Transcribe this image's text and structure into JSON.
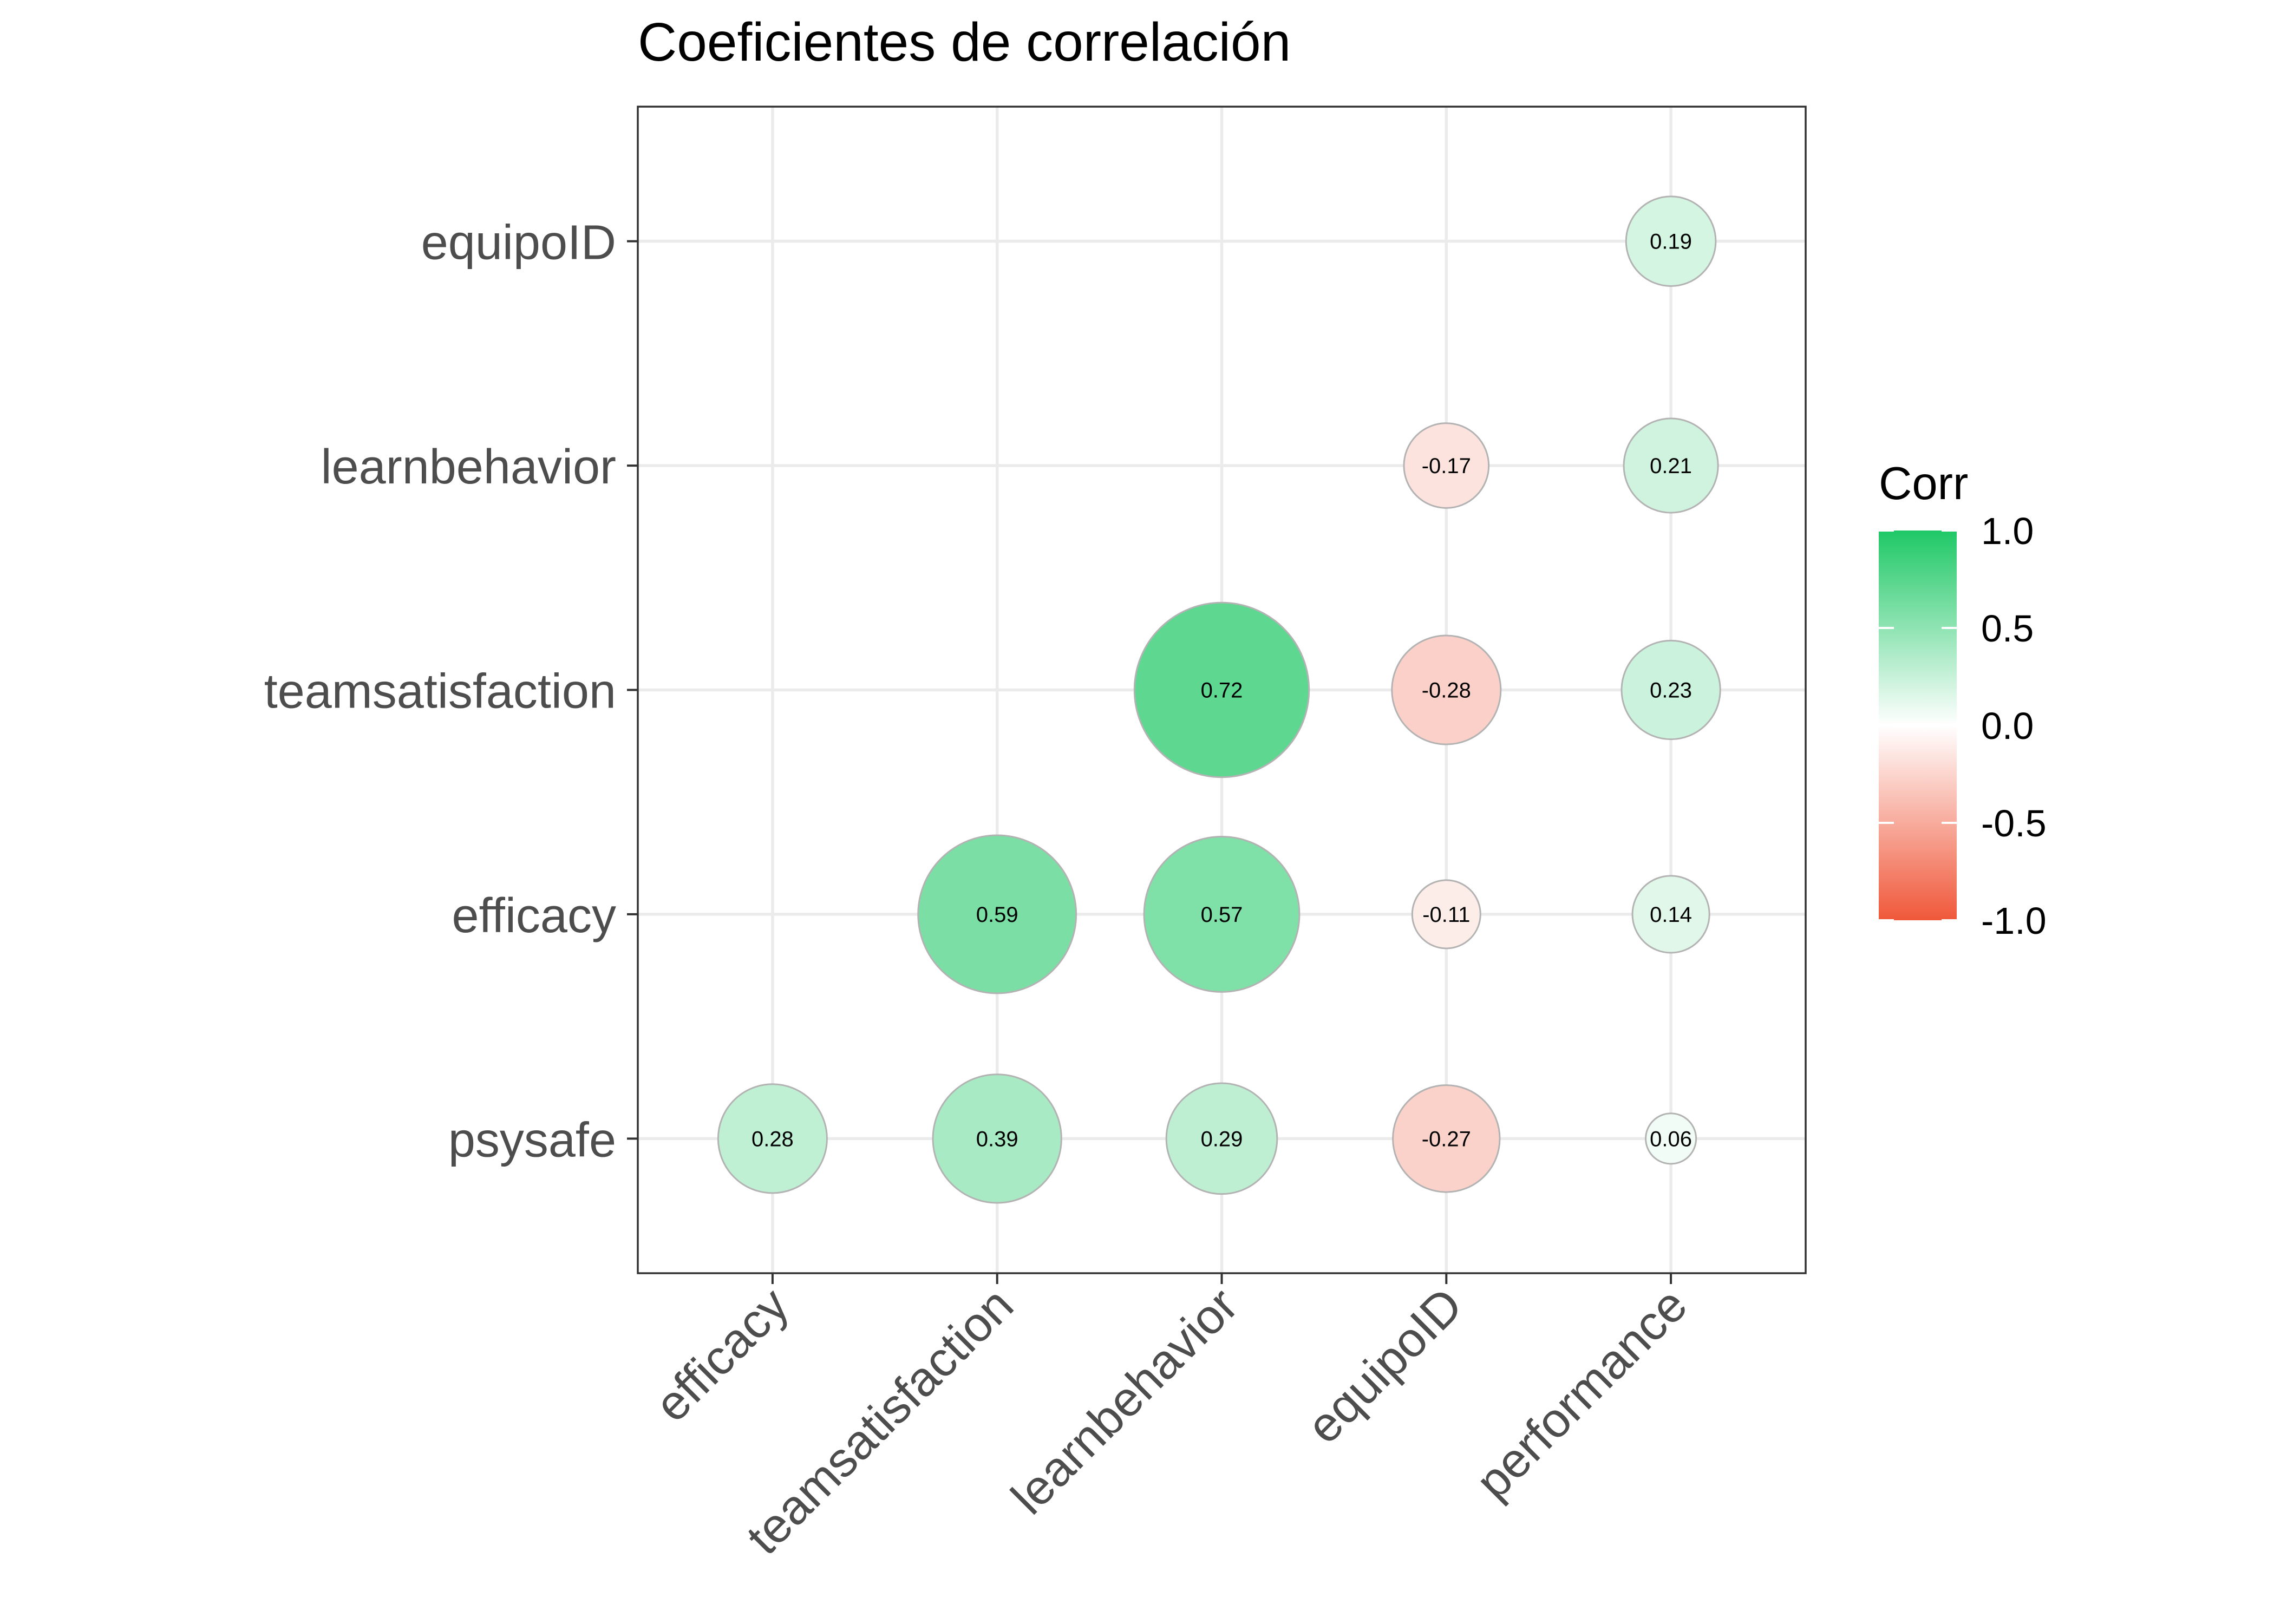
{
  "chart_data": {
    "type": "scatter",
    "title": "Coeficientes de correlación",
    "x_categories": [
      "efficacy",
      "teamsatisfaction",
      "learnbehavior",
      "equipoID",
      "performance"
    ],
    "y_categories": [
      "psysafe",
      "efficacy",
      "teamsatisfaction",
      "learnbehavior",
      "equipoID"
    ],
    "cells": [
      {
        "x": "efficacy",
        "y": "psysafe",
        "value": 0.28,
        "label": "0.28"
      },
      {
        "x": "teamsatisfaction",
        "y": "psysafe",
        "value": 0.39,
        "label": "0.39"
      },
      {
        "x": "learnbehavior",
        "y": "psysafe",
        "value": 0.29,
        "label": "0.29"
      },
      {
        "x": "equipoID",
        "y": "psysafe",
        "value": -0.27,
        "label": "-0.27"
      },
      {
        "x": "performance",
        "y": "psysafe",
        "value": 0.06,
        "label": "0.06"
      },
      {
        "x": "teamsatisfaction",
        "y": "efficacy",
        "value": 0.59,
        "label": "0.59"
      },
      {
        "x": "learnbehavior",
        "y": "efficacy",
        "value": 0.57,
        "label": "0.57"
      },
      {
        "x": "equipoID",
        "y": "efficacy",
        "value": -0.11,
        "label": "-0.11"
      },
      {
        "x": "performance",
        "y": "efficacy",
        "value": 0.14,
        "label": "0.14"
      },
      {
        "x": "learnbehavior",
        "y": "teamsatisfaction",
        "value": 0.72,
        "label": "0.72"
      },
      {
        "x": "equipoID",
        "y": "teamsatisfaction",
        "value": -0.28,
        "label": "-0.28"
      },
      {
        "x": "performance",
        "y": "teamsatisfaction",
        "value": 0.23,
        "label": "0.23"
      },
      {
        "x": "equipoID",
        "y": "learnbehavior",
        "value": -0.17,
        "label": "-0.17"
      },
      {
        "x": "performance",
        "y": "learnbehavior",
        "value": 0.21,
        "label": "0.21"
      },
      {
        "x": "performance",
        "y": "equipoID",
        "value": 0.19,
        "label": "0.19"
      }
    ],
    "legend": {
      "title": "Corr",
      "position": "right",
      "ticks": [
        {
          "value": 1.0,
          "label": "1.0"
        },
        {
          "value": 0.5,
          "label": "0.5"
        },
        {
          "value": 0.0,
          "label": "0.0"
        },
        {
          "value": -0.5,
          "label": "-0.5"
        },
        {
          "value": -1.0,
          "label": "-1.0"
        }
      ],
      "range": [
        -1,
        1
      ]
    },
    "colors": {
      "high": "#1fc866",
      "mid": "#ffffff",
      "low": "#f0583a",
      "point_outline": "#b3b3b3"
    },
    "grid": true
  }
}
